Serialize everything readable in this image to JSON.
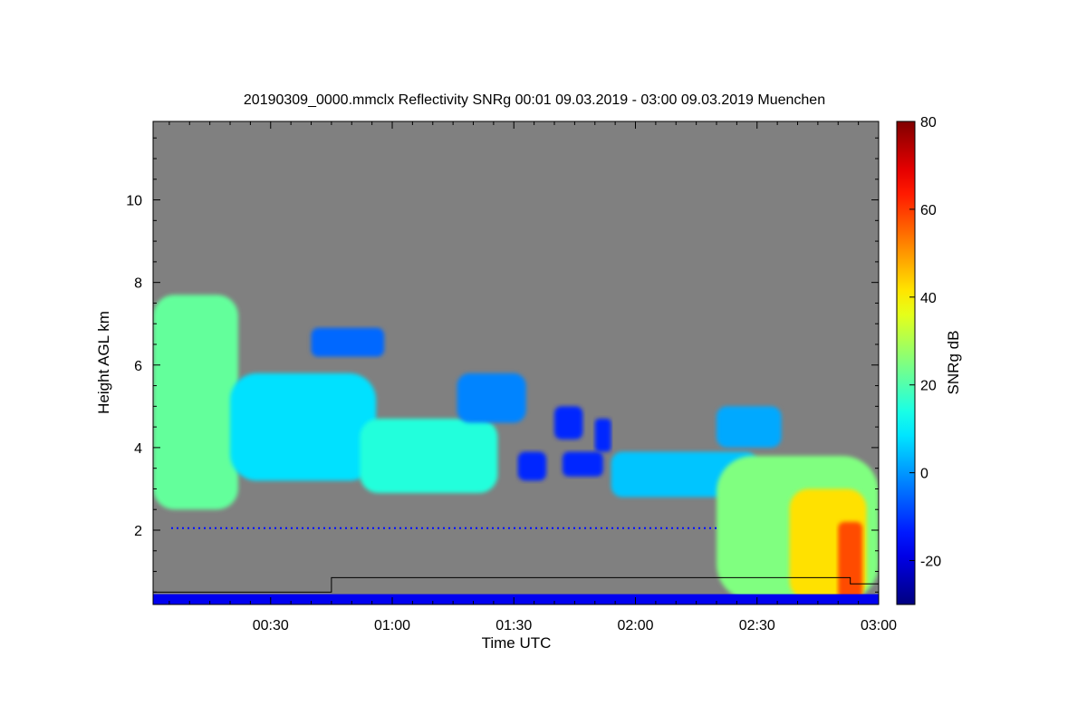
{
  "chart_data": {
    "type": "heatmap",
    "title": "20190309_0000.mmclx Reflectivity SNRg   00:01 09.03.2019 - 03:00 09.03.2019 Muenchen",
    "xlabel": "Time UTC",
    "ylabel": "Height AGL km",
    "x_range_minutes": [
      1,
      180
    ],
    "x_ticks": [
      {
        "minute": 30,
        "label": "00:30"
      },
      {
        "minute": 60,
        "label": "01:00"
      },
      {
        "minute": 90,
        "label": "01:30"
      },
      {
        "minute": 120,
        "label": "02:00"
      },
      {
        "minute": 150,
        "label": "02:30"
      },
      {
        "minute": 180,
        "label": "03:00"
      }
    ],
    "y_range_km": [
      0.2,
      11.9
    ],
    "y_ticks": [
      {
        "value": 2,
        "label": "2"
      },
      {
        "value": 4,
        "label": "4"
      },
      {
        "value": 6,
        "label": "6"
      },
      {
        "value": 8,
        "label": "8"
      },
      {
        "value": 10,
        "label": "10"
      }
    ],
    "background_color": "#808080",
    "colorbar": {
      "label": "SNRg dB",
      "range": [
        -30,
        80
      ],
      "ticks": [
        {
          "value": -20,
          "label": "-20"
        },
        {
          "value": 0,
          "label": "0"
        },
        {
          "value": 20,
          "label": "20"
        },
        {
          "value": 40,
          "label": "40"
        },
        {
          "value": 60,
          "label": "60"
        },
        {
          "value": 80,
          "label": "80"
        }
      ],
      "colormap": "jet"
    },
    "echo_regions": [
      {
        "t0": 1,
        "t1": 22,
        "base_km": 2.5,
        "top_km": 7.7,
        "snr_db": 22
      },
      {
        "t0": 20,
        "t1": 56,
        "base_km": 3.2,
        "top_km": 5.8,
        "snr_db": 8
      },
      {
        "t0": 40,
        "t1": 58,
        "base_km": 6.2,
        "top_km": 6.9,
        "snr_db": -5
      },
      {
        "t0": 52,
        "t1": 86,
        "base_km": 2.9,
        "top_km": 4.7,
        "snr_db": 15
      },
      {
        "t0": 76,
        "t1": 93,
        "base_km": 4.6,
        "top_km": 5.8,
        "snr_db": -2
      },
      {
        "t0": 91,
        "t1": 98,
        "base_km": 3.2,
        "top_km": 3.9,
        "snr_db": -12
      },
      {
        "t0": 100,
        "t1": 107,
        "base_km": 4.2,
        "top_km": 5.0,
        "snr_db": -12
      },
      {
        "t0": 102,
        "t1": 112,
        "base_km": 3.3,
        "top_km": 3.9,
        "snr_db": -12
      },
      {
        "t0": 110,
        "t1": 114,
        "base_km": 3.9,
        "top_km": 4.7,
        "snr_db": -12
      },
      {
        "t0": 114,
        "t1": 150,
        "base_km": 2.8,
        "top_km": 3.9,
        "snr_db": 5
      },
      {
        "t0": 140,
        "t1": 156,
        "base_km": 4.0,
        "top_km": 5.0,
        "snr_db": 2
      },
      {
        "t0": 140,
        "t1": 180,
        "base_km": 0.3,
        "top_km": 3.8,
        "snr_db": 25
      },
      {
        "t0": 158,
        "t1": 177,
        "base_km": 0.3,
        "top_km": 3.0,
        "snr_db": 42
      },
      {
        "t0": 170,
        "t1": 176,
        "base_km": 0.3,
        "top_km": 2.2,
        "snr_db": 58
      }
    ],
    "near_ground_band": {
      "base_km": 0.2,
      "top_km": 0.45,
      "snr_db": -18
    },
    "clutter_line": {
      "height_km": 2.05,
      "snr_db": -15
    },
    "boundary_line": [
      {
        "t": 1,
        "h": 0.5
      },
      {
        "t": 45,
        "h": 0.5
      },
      {
        "t": 45,
        "h": 0.85
      },
      {
        "t": 173,
        "h": 0.85
      },
      {
        "t": 173,
        "h": 0.7
      },
      {
        "t": 180,
        "h": 0.7
      }
    ]
  }
}
